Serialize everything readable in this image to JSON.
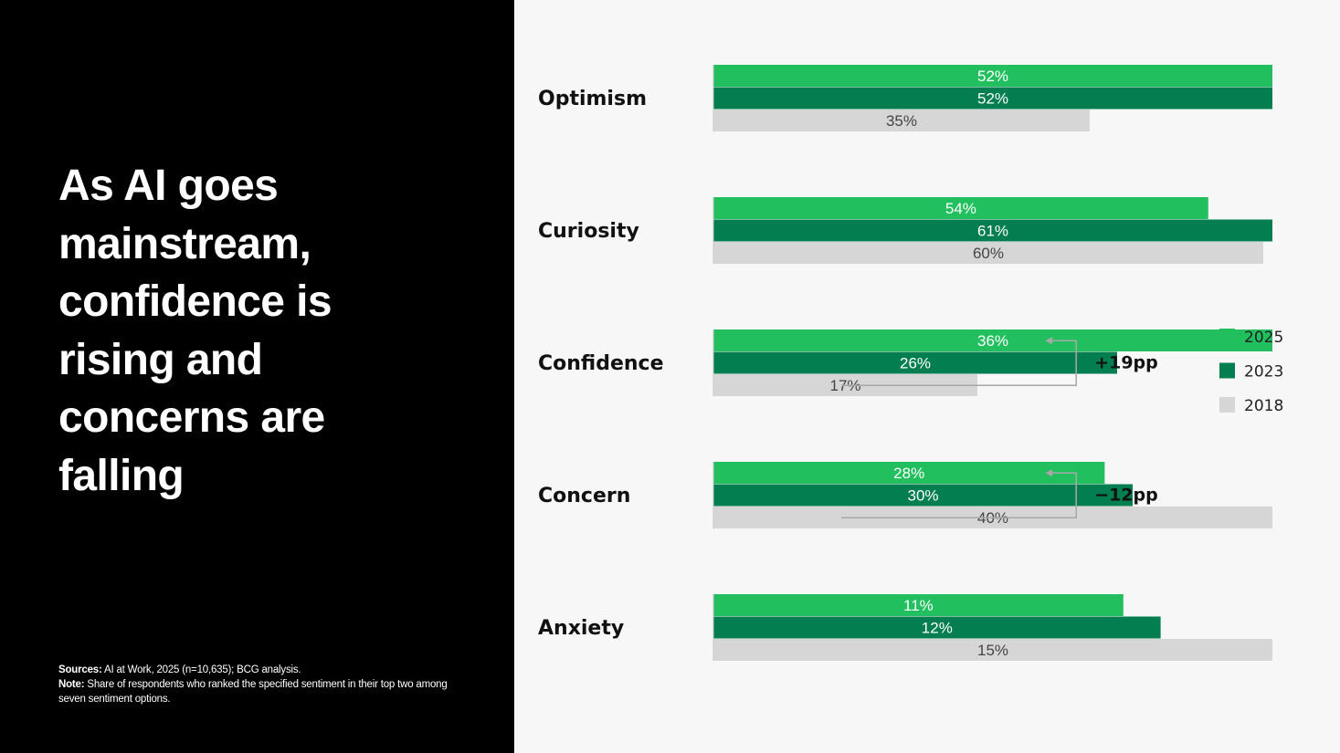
{
  "headline": "As AI goes mainstream, confidence is rising and concerns are falling",
  "footnote": {
    "sources_label": "Sources:",
    "sources_text": " AI at Work, 2025 (n=10,635); BCG analysis.",
    "note_label": "Note:",
    "note_text": " Share of respondents who ranked the specified sentiment in their top two among seven sentiment options."
  },
  "chart_data": {
    "type": "bar",
    "orientation": "horizontal",
    "categories": [
      "Optimism",
      "Curiosity",
      "Confidence",
      "Concern",
      "Anxiety"
    ],
    "series": [
      {
        "name": "2025",
        "color": "#22bf5f",
        "values": [
          52,
          54,
          36,
          28,
          11
        ]
      },
      {
        "name": "2023",
        "color": "#027e50",
        "values": [
          52,
          61,
          26,
          30,
          12
        ]
      },
      {
        "name": "2018",
        "color": "#d6d6d6",
        "values": [
          35,
          60,
          17,
          40,
          15
        ]
      }
    ],
    "value_suffix": "%",
    "legend": {
      "placement": "right"
    },
    "annotations": [
      {
        "category": "Confidence",
        "text": "+19pp"
      },
      {
        "category": "Concern",
        "text": "−12pp"
      }
    ],
    "title": "",
    "xlabel": "",
    "ylabel": ""
  }
}
